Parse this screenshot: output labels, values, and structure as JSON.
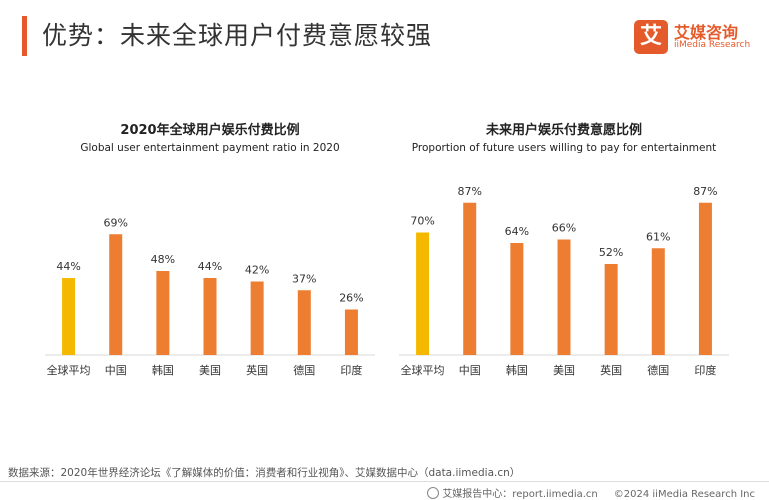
{
  "header": {
    "title": "优势：未来全球用户付费意愿较强"
  },
  "logo": {
    "mark": "艾",
    "name": "艾媒咨询",
    "sub": "iiMedia Research"
  },
  "colors": {
    "accent": "#e55a2b",
    "highlight_bar": "#f5b800",
    "bar": "#ed7d31",
    "axis": "#d9d9d9"
  },
  "chart_data": [
    {
      "type": "bar",
      "title": "2020年全球用户娱乐付费比例",
      "subtitle": "Global user entertainment payment ratio in 2020",
      "categories": [
        "全球平均",
        "中国",
        "韩国",
        "美国",
        "英国",
        "德国",
        "印度"
      ],
      "values": [
        44,
        69,
        48,
        44,
        42,
        37,
        26
      ],
      "value_labels": [
        "44%",
        "69%",
        "48%",
        "44%",
        "42%",
        "37%",
        "26%"
      ],
      "unit": "%",
      "ylim": [
        0,
        100
      ],
      "grid": false,
      "highlight_index": 0
    },
    {
      "type": "bar",
      "title": "未来用户娱乐付费意愿比例",
      "subtitle": "Proportion of future users willing to pay for entertainment",
      "categories": [
        "全球平均",
        "中国",
        "韩国",
        "美国",
        "英国",
        "德国",
        "印度"
      ],
      "values": [
        70,
        87,
        64,
        66,
        52,
        61,
        87
      ],
      "value_labels": [
        "70%",
        "87%",
        "64%",
        "66%",
        "52%",
        "61%",
        "87%"
      ],
      "unit": "%",
      "ylim": [
        0,
        100
      ],
      "grid": false,
      "highlight_index": 0
    }
  ],
  "source": "数据来源：2020年世界经济论坛《了解媒体的价值：消费者和行业视角》、艾媒数据中心（data.iimedia.cn）",
  "footer": {
    "report": "艾媒报告中心：report.iimedia.cn",
    "copyright": "©2024  iiMedia Research Inc"
  }
}
